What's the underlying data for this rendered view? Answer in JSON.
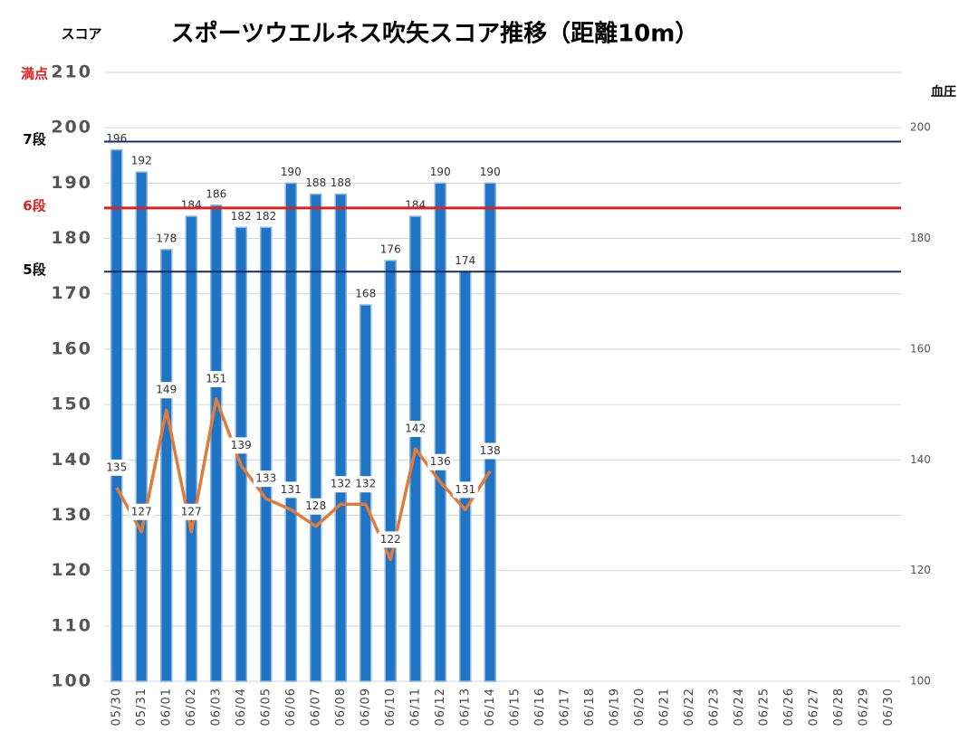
{
  "chart_data": {
    "type": "bar",
    "title": "スポーツウエルネス吹矢スコア推移（距離10m）",
    "y_label": "スコア",
    "y2_label": "血圧",
    "categories": [
      "05/30",
      "05/31",
      "06/01",
      "06/02",
      "06/03",
      "06/04",
      "06/05",
      "06/06",
      "06/07",
      "06/08",
      "06/09",
      "06/10",
      "06/11",
      "06/12",
      "06/13",
      "06/14",
      "06/15",
      "06/16",
      "06/17",
      "06/18",
      "06/19",
      "06/20",
      "06/21",
      "06/22",
      "06/23",
      "06/24",
      "06/25",
      "06/26",
      "06/27",
      "06/28",
      "06/29",
      "06/30"
    ],
    "series": [
      {
        "type": "bar",
        "color": "#1f74c4",
        "values": [
          196,
          192,
          178,
          184,
          186,
          182,
          182,
          190,
          188,
          188,
          168,
          176,
          184,
          190,
          174,
          190,
          null,
          null,
          null,
          null,
          null,
          null,
          null,
          null,
          null,
          null,
          null,
          null,
          null,
          null,
          null,
          null
        ]
      },
      {
        "type": "line",
        "axis": "y2",
        "color": "#e07b39",
        "values": [
          135,
          127,
          149,
          127,
          151,
          139,
          133,
          131,
          128,
          132,
          132,
          122,
          142,
          136,
          131,
          138,
          null,
          null,
          null,
          null,
          null,
          null,
          null,
          null,
          null,
          null,
          null,
          null,
          null,
          null,
          null,
          null
        ]
      }
    ],
    "ylim": [
      100,
      210
    ],
    "yticks": [
      100,
      110,
      120,
      130,
      140,
      150,
      160,
      170,
      180,
      190,
      200,
      210
    ],
    "y2lim": [
      100,
      210
    ],
    "y2ticks": [
      100,
      120,
      140,
      160,
      180,
      200
    ],
    "grid": true,
    "reference_lines": [
      {
        "value": 197.5,
        "label": "7段",
        "color": "#1a2a6c",
        "label_color": "#000"
      },
      {
        "value": 185.5,
        "label": "6段",
        "color": "#e02020",
        "label_color": "#e02020"
      },
      {
        "value": 174,
        "label": "5段",
        "color": "#1a2a6c",
        "label_color": "#000"
      }
    ],
    "annotations": [
      {
        "value": 210,
        "label": "満点",
        "color": "#e02020"
      }
    ]
  }
}
